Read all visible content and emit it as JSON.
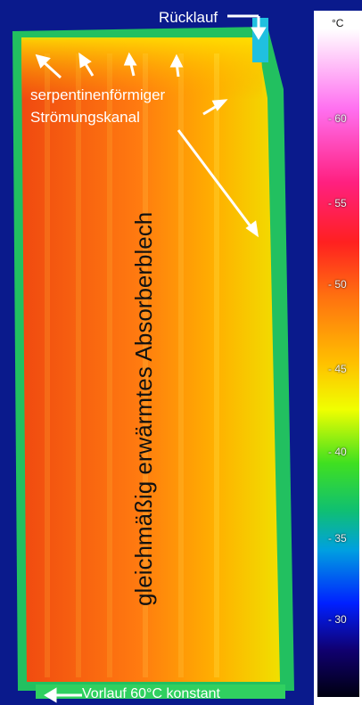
{
  "image": {
    "description_labels": {
      "ruecklauf": "Rücklauf",
      "kanal": "serpentinenförmiger\nStrömungskanal",
      "kanal_line1": "serpentinenförmiger",
      "kanal_line2": "Strömungskanal",
      "absorber": "gleichmäßig erwärmtes Absorberblech",
      "vorlauf": "Vorlauf  60°C konstant"
    }
  },
  "scale": {
    "unit": "°C",
    "ticks": [
      "60",
      "55",
      "50",
      "45",
      "40",
      "35",
      "30"
    ]
  },
  "colors": {
    "background": "#0a1a8c",
    "panel_hot": "#f05010",
    "panel_mid": "#ffa000",
    "panel_edge": "#d8f000",
    "border_green": "#20d040"
  }
}
